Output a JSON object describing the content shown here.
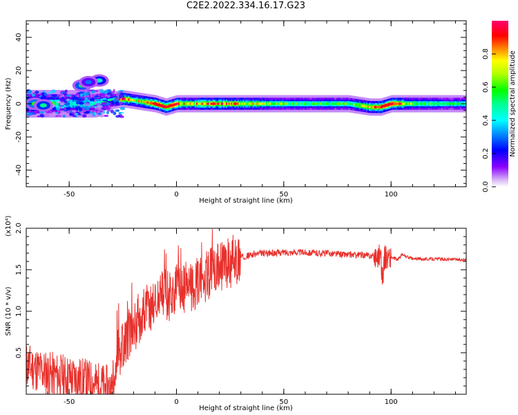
{
  "title": "C2E2.2022.334.16.17.G23",
  "colors": {
    "snr_line": "#e8312c",
    "background": "#ffffff",
    "axis": "#000000"
  },
  "chart_data": [
    {
      "type": "heatmap",
      "xlabel": "Height of straight line (km)",
      "ylabel": "Frequency (Hz)",
      "xlim": [
        -70,
        135
      ],
      "ylim": [
        -50,
        50
      ],
      "xticks": [
        -50,
        0,
        50,
        100
      ],
      "yticks": [
        -40,
        -20,
        0,
        20,
        40
      ],
      "colorbar": {
        "label": "Normalized spectral amplitude",
        "range": [
          0,
          1
        ],
        "ticks": [
          0.0,
          0.2,
          0.4,
          0.6,
          0.8
        ],
        "colormap": "rainbow (purple-blue-cyan-green-yellow-red-magenta)"
      },
      "ridge": {
        "x": [
          -70,
          -55,
          -45,
          -38,
          -30,
          -25,
          -20,
          -10,
          -5,
          0,
          5,
          10,
          20,
          40,
          60,
          80,
          90,
          95,
          100,
          110,
          125,
          135
        ],
        "freq": [
          0,
          0,
          0,
          0,
          2,
          3,
          2,
          0,
          -2,
          0,
          0,
          0,
          0,
          0,
          0,
          0,
          -2,
          -2,
          0,
          0,
          0,
          0
        ],
        "amplitude": [
          0.5,
          0.4,
          0.3,
          0.35,
          0.45,
          0.85,
          0.55,
          0.85,
          0.9,
          0.8,
          0.6,
          0.7,
          0.75,
          0.55,
          0.45,
          0.45,
          0.7,
          0.85,
          0.9,
          0.5,
          0.4,
          0.4
        ]
      },
      "blobs": [
        {
          "x": -44,
          "freq": 11,
          "amplitude": 0.55
        },
        {
          "x": -36,
          "freq": 14,
          "amplitude": 0.45
        },
        {
          "x": -41,
          "freq": 13,
          "amplitude": 0.3
        },
        {
          "x": -66,
          "freq": 0,
          "amplitude": 0.6
        },
        {
          "x": -62,
          "freq": -1,
          "amplitude": 0.5
        }
      ]
    },
    {
      "type": "line",
      "xlabel": "Height of straight line (km)",
      "ylabel": "SNR (10 * v/v)",
      "y_multiplier": "(x10⁴)",
      "xlim": [
        -70,
        135
      ],
      "ylim": [
        0,
        2.0
      ],
      "xticks": [
        -50,
        0,
        50,
        100
      ],
      "yticks": [
        0.5,
        1.0,
        1.5,
        2.0
      ],
      "series": [
        {
          "x": [
            -70,
            -65,
            -60,
            -55,
            -50,
            -45,
            -40,
            -35,
            -30,
            -28,
            -25,
            -22,
            -20,
            -18,
            -15,
            -12,
            -10,
            -8,
            -5,
            -3,
            0,
            3,
            5,
            8,
            10,
            12,
            15,
            18,
            20,
            22,
            25,
            28,
            30,
            35,
            40,
            45,
            50,
            55,
            60,
            65,
            70,
            75,
            80,
            85,
            90,
            93,
            95,
            96,
            97,
            100,
            103,
            105,
            110,
            120,
            135
          ],
          "y": [
            0.35,
            0.3,
            0.25,
            0.22,
            0.2,
            0.18,
            0.14,
            0.1,
            0.05,
            0.45,
            0.6,
            0.75,
            0.8,
            0.9,
            1.0,
            1.05,
            1.1,
            1.15,
            1.2,
            1.2,
            1.25,
            1.25,
            1.3,
            1.3,
            1.35,
            1.4,
            1.45,
            1.5,
            1.5,
            1.55,
            1.6,
            1.62,
            1.65,
            1.68,
            1.7,
            1.7,
            1.71,
            1.71,
            1.71,
            1.7,
            1.7,
            1.69,
            1.68,
            1.68,
            1.67,
            1.66,
            1.7,
            1.4,
            1.65,
            1.65,
            1.62,
            1.68,
            1.63,
            1.63,
            1.62
          ]
        }
      ]
    }
  ]
}
